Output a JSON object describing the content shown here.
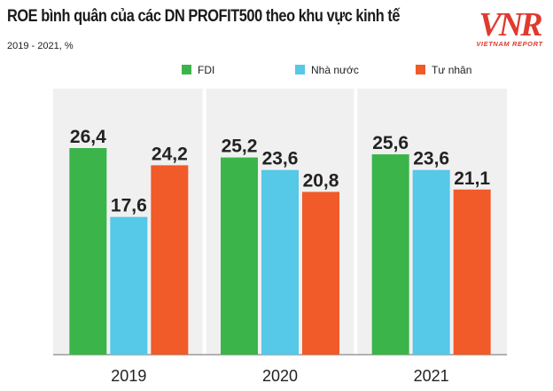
{
  "header": {
    "title": "ROE bình quân của các DN PROFIT500 theo khu vực kinh tế",
    "subtitle": "2019 - 2021, %"
  },
  "logo": {
    "brand": "VNR",
    "tagline": "VIETNAM REPORT"
  },
  "colors": {
    "FDI": "#3bb54a",
    "Nhà nước": "#56c8e8",
    "Tư nhân": "#f15a29",
    "brand": "#e03a2f"
  },
  "chart_data": {
    "type": "bar",
    "title": "ROE bình quân của các DN PROFIT500 theo khu vực kinh tế",
    "subtitle": "2019 - 2021, %",
    "categories": [
      "2019",
      "2020",
      "2021"
    ],
    "series": [
      {
        "name": "FDI",
        "values": [
          26.4,
          25.2,
          25.6
        ],
        "labels": [
          "26,4",
          "25,2",
          "25,6"
        ]
      },
      {
        "name": "Nhà nước",
        "values": [
          17.6,
          23.6,
          23.6
        ],
        "labels": [
          "17,6",
          "23,6",
          "23,6"
        ]
      },
      {
        "name": "Tư nhân",
        "values": [
          24.2,
          20.8,
          21.1
        ],
        "labels": [
          "24,2",
          "20,8",
          "21,1"
        ]
      }
    ],
    "ylim": [
      0,
      30
    ],
    "grid": false,
    "legend": "top",
    "xlabel": "",
    "ylabel": ""
  }
}
